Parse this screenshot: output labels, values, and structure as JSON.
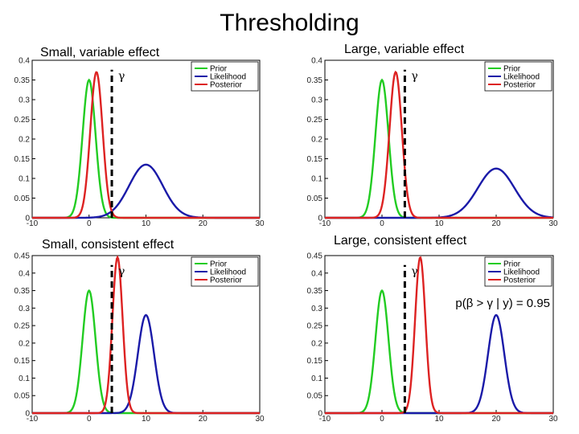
{
  "title": "Thresholding",
  "colors": {
    "prior": "#22cc22",
    "likelihood": "#1a1aa8",
    "posterior": "#dd2222",
    "threshold": "#000000"
  },
  "chart_data": [
    {
      "type": "line",
      "title": "Small, variable effect",
      "xlim": [
        -10,
        30
      ],
      "ylim": [
        0,
        0.4
      ],
      "xticks": [
        -10,
        0,
        10,
        20,
        30
      ],
      "yticks": [
        0,
        0.05,
        0.1,
        0.15,
        0.2,
        0.25,
        0.3,
        0.35,
        0.4
      ],
      "threshold_label": "γ",
      "threshold_x": 4,
      "legend": [
        "Prior",
        "Likelihood",
        "Posterior"
      ],
      "series": [
        {
          "name": "Prior",
          "mean": 0,
          "peak": 0.35,
          "sd": 1.14
        },
        {
          "name": "Likelihood",
          "mean": 10,
          "peak": 0.135,
          "sd": 2.95
        },
        {
          "name": "Posterior",
          "mean": 1.3,
          "peak": 0.37,
          "sd": 1.08
        }
      ]
    },
    {
      "type": "line",
      "title": "Large, variable effect",
      "xlim": [
        -10,
        30
      ],
      "ylim": [
        0,
        0.4
      ],
      "xticks": [
        -10,
        0,
        10,
        20,
        30
      ],
      "yticks": [
        0,
        0.05,
        0.1,
        0.15,
        0.2,
        0.25,
        0.3,
        0.35,
        0.4
      ],
      "threshold_label": "γ",
      "threshold_x": 4,
      "legend": [
        "Prior",
        "Likelihood",
        "Posterior"
      ],
      "series": [
        {
          "name": "Prior",
          "mean": 0,
          "peak": 0.35,
          "sd": 1.14
        },
        {
          "name": "Likelihood",
          "mean": 20,
          "peak": 0.125,
          "sd": 3.2
        },
        {
          "name": "Posterior",
          "mean": 2.4,
          "peak": 0.37,
          "sd": 1.08
        }
      ]
    },
    {
      "type": "line",
      "title": "Small, consistent effect",
      "xlim": [
        -10,
        30
      ],
      "ylim": [
        0,
        0.45
      ],
      "xticks": [
        -10,
        0,
        10,
        20,
        30
      ],
      "yticks": [
        0,
        0.05,
        0.1,
        0.15,
        0.2,
        0.25,
        0.3,
        0.35,
        0.4,
        0.45
      ],
      "threshold_label": "γ",
      "threshold_x": 4,
      "legend": [
        "Prior",
        "Likelihood",
        "Posterior"
      ],
      "series": [
        {
          "name": "Prior",
          "mean": 0,
          "peak": 0.35,
          "sd": 1.14
        },
        {
          "name": "Likelihood",
          "mean": 10,
          "peak": 0.28,
          "sd": 1.42
        },
        {
          "name": "Posterior",
          "mean": 5,
          "peak": 0.445,
          "sd": 0.9
        }
      ]
    },
    {
      "type": "line",
      "title": "Large, consistent effect",
      "xlim": [
        -10,
        30
      ],
      "ylim": [
        0,
        0.45
      ],
      "xticks": [
        -10,
        0,
        10,
        20,
        30
      ],
      "yticks": [
        0,
        0.05,
        0.1,
        0.15,
        0.2,
        0.25,
        0.3,
        0.35,
        0.4,
        0.45
      ],
      "threshold_label": "γ",
      "threshold_x": 4,
      "legend": [
        "Prior",
        "Likelihood",
        "Posterior"
      ],
      "annotation": "p(β > γ | y) = 0.95",
      "series": [
        {
          "name": "Prior",
          "mean": 0,
          "peak": 0.35,
          "sd": 1.14
        },
        {
          "name": "Likelihood",
          "mean": 20,
          "peak": 0.28,
          "sd": 1.42
        },
        {
          "name": "Posterior",
          "mean": 6.7,
          "peak": 0.445,
          "sd": 0.9
        }
      ]
    }
  ]
}
